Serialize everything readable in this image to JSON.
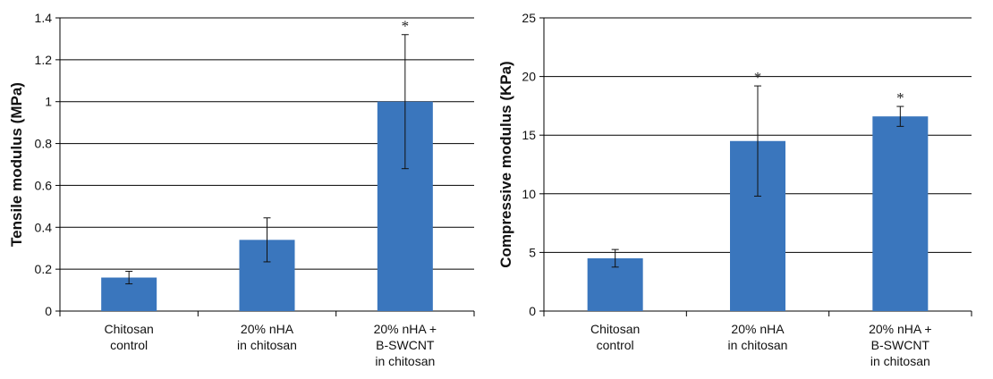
{
  "chart_data": [
    {
      "type": "bar",
      "categories": [
        [
          "Chitosan",
          "control"
        ],
        [
          "20% nHA",
          "in chitosan"
        ],
        [
          "20% nHA +",
          "B-SWCNT",
          "in chitosan"
        ]
      ],
      "values": [
        0.16,
        0.34,
        1.0
      ],
      "errors": [
        0.03,
        0.105,
        0.32
      ],
      "annotations": [
        "",
        "",
        "*"
      ],
      "title": "",
      "xlabel": "",
      "ylabel": "Tensile modulus (MPa)",
      "ylim": [
        0,
        1.4
      ],
      "yticks": [
        0,
        0.2,
        0.4,
        0.6,
        0.8,
        1,
        1.2,
        1.4
      ],
      "ytick_labels": [
        "0",
        "0.2",
        "0.4",
        "0.6",
        "0.8",
        "1",
        "1.2",
        "1.4"
      ],
      "grid": true,
      "bar_color": "#3a76bd"
    },
    {
      "type": "bar",
      "categories": [
        [
          "Chitosan",
          "control"
        ],
        [
          "20% nHA",
          "in chitosan"
        ],
        [
          "20% nHA +",
          "B-SWCNT",
          "in chitosan"
        ]
      ],
      "values": [
        4.5,
        14.5,
        16.6
      ],
      "errors": [
        0.75,
        4.7,
        0.85
      ],
      "annotations": [
        "",
        "*",
        "*"
      ],
      "title": "",
      "xlabel": "",
      "ylabel": "Compressive modulus (KPa)",
      "ylim": [
        0,
        25
      ],
      "yticks": [
        0,
        5,
        10,
        15,
        20,
        25
      ],
      "ytick_labels": [
        "0",
        "5",
        "10",
        "15",
        "20",
        "25"
      ],
      "grid": true,
      "bar_color": "#3a76bd"
    }
  ]
}
